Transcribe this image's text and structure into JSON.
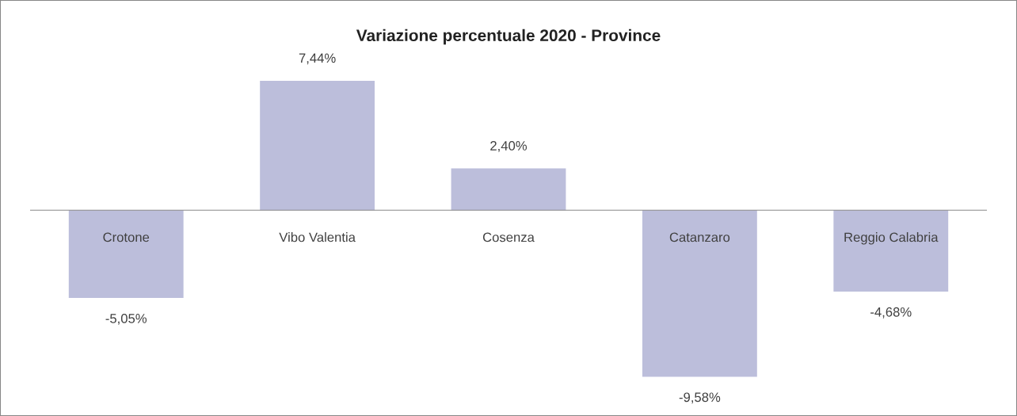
{
  "chart_data": {
    "type": "bar",
    "title": "Variazione percentuale 2020 - Province",
    "categories": [
      "Crotone",
      "Vibo Valentia",
      "Cosenza",
      "Catanzaro",
      "Reggio Calabria"
    ],
    "values": [
      -5.05,
      7.44,
      2.4,
      -9.58,
      -4.68
    ],
    "value_labels": [
      "-5,05%",
      "7,44%",
      "2,40%",
      "-9,58%",
      "-4,68%"
    ],
    "color": "#bcbedb",
    "grid": false,
    "legend": false
  }
}
